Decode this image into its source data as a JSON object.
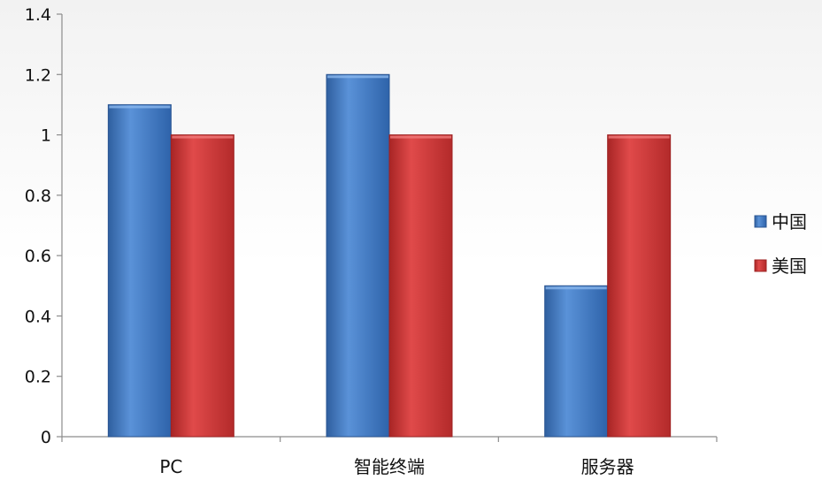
{
  "chart_data": {
    "type": "bar",
    "title": "",
    "xlabel": "",
    "ylabel": "",
    "categories": [
      "PC",
      "智能终端",
      "服务器"
    ],
    "series": [
      {
        "name": "中国",
        "values": [
          1.1,
          1.2,
          0.5
        ],
        "color": "#3f78c6"
      },
      {
        "name": "美国",
        "values": [
          1.0,
          1.0,
          1.0
        ],
        "color": "#d63a3a"
      }
    ],
    "ylim": [
      0,
      1.4
    ],
    "yticks": [
      0,
      0.2,
      0.4,
      0.6,
      0.8,
      1,
      1.2,
      1.4
    ],
    "ytick_labels": [
      "0",
      "0.2",
      "0.4",
      "0.6",
      "0.8",
      "1",
      "1.2",
      "1.4"
    ],
    "grid": false,
    "legend_position": "right"
  }
}
